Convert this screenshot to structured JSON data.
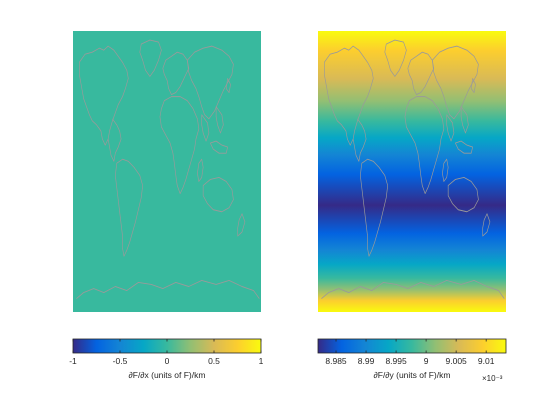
{
  "chart_data": [
    {
      "type": "heatmap",
      "title": "",
      "field_description": "uniform field (dF/dx constant)",
      "field_value": 0,
      "colorbar": {
        "label": "∂F/∂x (units of F)/km",
        "range": [
          -1,
          1
        ],
        "ticks": [
          -1,
          -0.5,
          0,
          0.5,
          1
        ],
        "tick_labels": [
          "-1",
          "-0.5",
          "0",
          "0.5",
          "1"
        ],
        "exponent_label": ""
      },
      "coastline_color": "#9a9a9a"
    },
    {
      "type": "heatmap",
      "title": "",
      "field_description": "varies with latitude; minimum near 25°S, maximum at the poles",
      "colorbar": {
        "label": "∂F/∂y (units of F)/km",
        "range": [
          8.982,
          9.0133
        ],
        "ticks": [
          8.985,
          8.99,
          8.995,
          9,
          9.005,
          9.01
        ],
        "tick_labels": [
          "8.985",
          "8.99",
          "8.995",
          "9",
          "9.005",
          "9.01"
        ],
        "exponent_label": "×10⁻³"
      },
      "coastline_color": "#9a9a9a"
    }
  ],
  "colormap": "parula"
}
